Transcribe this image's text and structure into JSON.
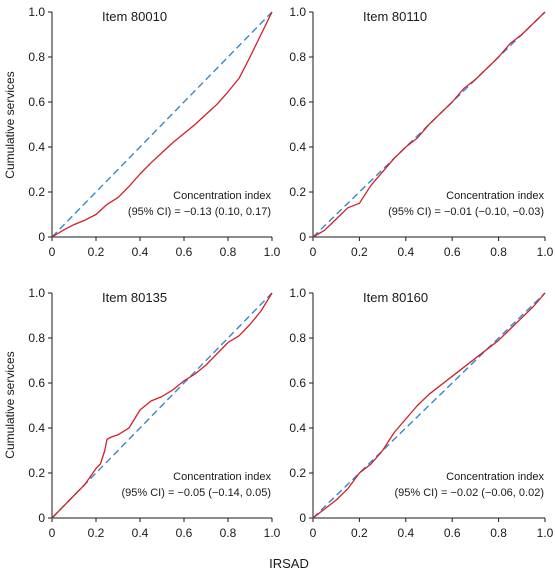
{
  "figure": {
    "ylabel": "Cumulative services",
    "xlabel": "IRSAD"
  },
  "colors": {
    "curve": "#d0202a",
    "equality_line": "#3a87c8",
    "axis": "#1a1a1a"
  },
  "chart_data": [
    {
      "type": "line",
      "title": "Item 80010",
      "annotation_line1": "Concentration index",
      "annotation_line2": "(95% CI) = −0.13 (0.10, 0.17)",
      "xlim": [
        0,
        1
      ],
      "ylim": [
        0,
        1
      ],
      "xticks": [
        "0",
        "0.2",
        "0.4",
        "0.6",
        "0.8",
        "1.0"
      ],
      "yticks": [
        "0",
        "0.2",
        "0.4",
        "0.6",
        "0.8",
        "1.0"
      ],
      "series": [
        {
          "x": [
            0,
            0.05,
            0.1,
            0.15,
            0.2,
            0.25,
            0.3,
            0.35,
            0.4,
            0.45,
            0.5,
            0.55,
            0.6,
            0.65,
            0.7,
            0.75,
            0.8,
            0.85,
            0.9,
            0.95,
            1.0
          ],
          "y": [
            0,
            0.03,
            0.055,
            0.075,
            0.1,
            0.145,
            0.175,
            0.225,
            0.28,
            0.33,
            0.375,
            0.42,
            0.46,
            0.5,
            0.545,
            0.59,
            0.645,
            0.705,
            0.8,
            0.9,
            1.0
          ]
        },
        {
          "x": [
            0,
            1
          ],
          "y": [
            0,
            1
          ]
        }
      ]
    },
    {
      "type": "line",
      "title": "Item 80110",
      "annotation_line1": "Concentration index",
      "annotation_line2": "(95% CI) = −0.01 (−0.10, −0.03)",
      "xlim": [
        0,
        1
      ],
      "ylim": [
        0,
        1
      ],
      "xticks": [
        "0",
        "0.2",
        "0.4",
        "0.6",
        "0.8",
        "1.0"
      ],
      "yticks": [
        "0",
        "0.2",
        "0.4",
        "0.6",
        "0.8",
        "1.0"
      ],
      "series": [
        {
          "x": [
            0,
            0.05,
            0.1,
            0.15,
            0.2,
            0.25,
            0.3,
            0.35,
            0.4,
            0.45,
            0.5,
            0.55,
            0.6,
            0.65,
            0.7,
            0.75,
            0.8,
            0.85,
            0.9,
            0.95,
            1.0
          ],
          "y": [
            0,
            0.03,
            0.08,
            0.13,
            0.15,
            0.23,
            0.29,
            0.35,
            0.4,
            0.44,
            0.5,
            0.55,
            0.6,
            0.66,
            0.7,
            0.75,
            0.8,
            0.86,
            0.9,
            0.95,
            1.0
          ]
        },
        {
          "x": [
            0,
            1
          ],
          "y": [
            0,
            1
          ]
        }
      ]
    },
    {
      "type": "line",
      "title": "Item 80135",
      "annotation_line1": "Concentration index",
      "annotation_line2": "(95% CI) = −0.05 (−0.14, 0.05)",
      "xlim": [
        0,
        1
      ],
      "ylim": [
        0,
        1
      ],
      "xticks": [
        "0",
        "0.2",
        "0.4",
        "0.6",
        "0.8",
        "1.0"
      ],
      "yticks": [
        "0",
        "0.2",
        "0.4",
        "0.6",
        "0.8",
        "1.0"
      ],
      "series": [
        {
          "x": [
            0,
            0.05,
            0.1,
            0.15,
            0.2,
            0.22,
            0.24,
            0.25,
            0.27,
            0.3,
            0.35,
            0.4,
            0.45,
            0.5,
            0.55,
            0.6,
            0.65,
            0.7,
            0.75,
            0.8,
            0.85,
            0.9,
            0.95,
            1.0
          ],
          "y": [
            0,
            0.05,
            0.1,
            0.15,
            0.22,
            0.24,
            0.3,
            0.35,
            0.36,
            0.37,
            0.4,
            0.48,
            0.52,
            0.54,
            0.57,
            0.61,
            0.64,
            0.68,
            0.73,
            0.78,
            0.81,
            0.86,
            0.92,
            1.0
          ]
        },
        {
          "x": [
            0,
            1
          ],
          "y": [
            0,
            1
          ]
        }
      ]
    },
    {
      "type": "line",
      "title": "Item 80160",
      "annotation_line1": "Concentration index",
      "annotation_line2": "(95% CI) = −0.02 (−0.06, 0.02)",
      "xlim": [
        0,
        1
      ],
      "ylim": [
        0,
        1
      ],
      "xticks": [
        "0",
        "0.2",
        "0.4",
        "0.6",
        "0.8",
        "1.0"
      ],
      "yticks": [
        "0",
        "0.2",
        "0.4",
        "0.6",
        "0.8",
        "1.0"
      ],
      "series": [
        {
          "x": [
            0,
            0.05,
            0.1,
            0.15,
            0.2,
            0.25,
            0.3,
            0.35,
            0.4,
            0.45,
            0.5,
            0.55,
            0.6,
            0.65,
            0.7,
            0.75,
            0.8,
            0.85,
            0.9,
            0.95,
            1.0
          ],
          "y": [
            0,
            0.04,
            0.08,
            0.13,
            0.2,
            0.24,
            0.3,
            0.38,
            0.44,
            0.5,
            0.55,
            0.59,
            0.63,
            0.67,
            0.71,
            0.75,
            0.79,
            0.84,
            0.89,
            0.94,
            1.0
          ]
        },
        {
          "x": [
            0,
            1
          ],
          "y": [
            0,
            1
          ]
        }
      ]
    }
  ]
}
